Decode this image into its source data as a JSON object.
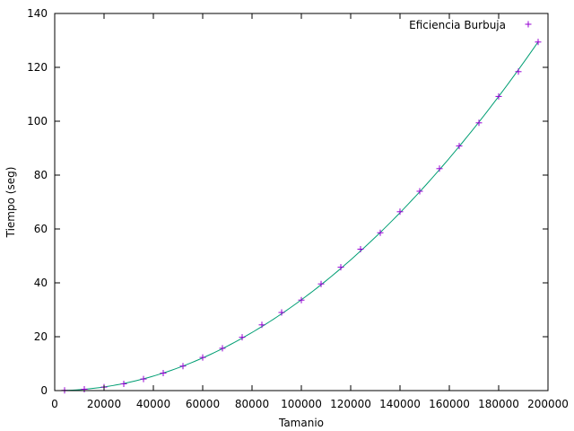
{
  "chart_data": {
    "type": "scatter",
    "title": "",
    "xlabel": "Tamanio",
    "ylabel": "Tiempo (seg)",
    "xlim": [
      0,
      200000
    ],
    "ylim": [
      0,
      140
    ],
    "x_ticks": [
      0,
      20000,
      40000,
      60000,
      80000,
      100000,
      120000,
      140000,
      160000,
      180000,
      200000
    ],
    "y_ticks": [
      0,
      20,
      40,
      60,
      80,
      100,
      120,
      140
    ],
    "x_tick_labels": [
      "0",
      "20000",
      "40000",
      "60000",
      "80000",
      "100000",
      "120000",
      "140000",
      "160000",
      "180000",
      "200000"
    ],
    "y_tick_labels": [
      "0",
      "20",
      "40",
      "60",
      "80",
      "100",
      "120",
      "140"
    ],
    "grid": false,
    "legend_position": "top-right",
    "series": [
      {
        "name": "Eficiencia Burbuja",
        "marker": "+",
        "marker_color": "#9400d3",
        "x": [
          4000,
          12000,
          20000,
          28000,
          36000,
          44000,
          52000,
          60000,
          68000,
          76000,
          84000,
          92000,
          100000,
          108000,
          116000,
          124000,
          132000,
          140000,
          148000,
          156000,
          164000,
          172000,
          180000,
          188000,
          196000
        ],
        "y": [
          0.1,
          0.5,
          1.3,
          2.5,
          4.3,
          6.5,
          9.1,
          12.3,
          15.7,
          19.8,
          24.4,
          29.0,
          33.6,
          39.6,
          45.8,
          52.5,
          58.6,
          66.4,
          74.0,
          82.4,
          90.8,
          99.4,
          109.2,
          118.4,
          129.4
        ]
      }
    ],
    "fit_curve": {
      "color": "#009e73",
      "coefficient": 3.37e-09
    }
  }
}
